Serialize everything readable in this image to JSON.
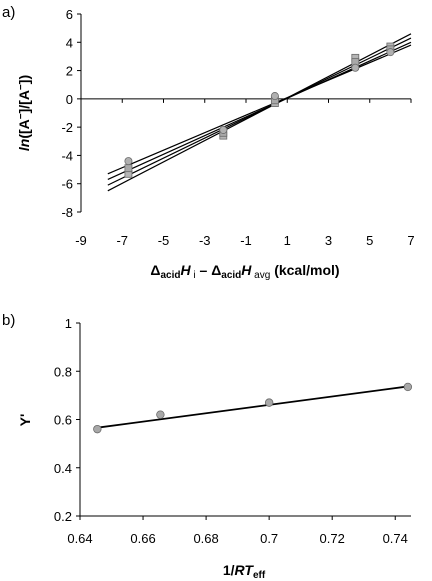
{
  "chart_data": [
    {
      "panel_label": "a)",
      "type": "scatter",
      "ylabel_parts": [
        "ln",
        "([A",
        "−",
        "]/[A",
        "−",
        "])"
      ],
      "xlabel_parts": [
        "Δ",
        "acid",
        "H",
        " i",
        " – Δ",
        "acid",
        "H",
        " avg",
        " (kcal/mol)"
      ],
      "xlim": [
        -9,
        7
      ],
      "ylim": [
        -8,
        6
      ],
      "xticks": [
        -9,
        -7,
        -5,
        -3,
        -1,
        1,
        3,
        5,
        7
      ],
      "yticks": [
        -8,
        -6,
        -4,
        -2,
        0,
        2,
        4,
        6
      ],
      "series": [
        {
          "marker": "square",
          "color": "#b5b5b5",
          "points": [
            [
              -6.7,
              -5.3
            ],
            [
              -2.1,
              -2.6
            ],
            [
              0.4,
              -0.3
            ],
            [
              4.3,
              2.9
            ],
            [
              6.0,
              3.7
            ]
          ]
        },
        {
          "marker": "square",
          "color": "#a9a9a9",
          "points": [
            [
              -6.7,
              -4.9
            ],
            [
              -2.1,
              -2.4
            ],
            [
              0.4,
              -0.1
            ],
            [
              4.3,
              2.6
            ],
            [
              6.0,
              3.5
            ]
          ]
        },
        {
          "marker": "circle",
          "color": "#b0b0b0",
          "points": [
            [
              -6.7,
              -4.4
            ],
            [
              -2.1,
              -2.2
            ],
            [
              0.4,
              0.2
            ],
            [
              4.3,
              2.2
            ],
            [
              6.0,
              3.3
            ]
          ]
        }
      ],
      "fit_lines": [
        {
          "x": [
            -7.7,
            7.0
          ],
          "y": [
            -6.5,
            4.6
          ]
        },
        {
          "x": [
            -7.7,
            7.0
          ],
          "y": [
            -6.1,
            4.3
          ]
        },
        {
          "x": [
            -7.7,
            7.0
          ],
          "y": [
            -5.7,
            4.0
          ]
        },
        {
          "x": [
            -7.7,
            7.0
          ],
          "y": [
            -5.3,
            3.8
          ]
        }
      ]
    },
    {
      "panel_label": "b)",
      "type": "scatter",
      "ylabel": "Y'",
      "xlabel_parts": [
        "1/",
        "RT",
        "eff"
      ],
      "xlim": [
        0.64,
        0.745
      ],
      "ylim": [
        0.2,
        1
      ],
      "xticks": [
        0.64,
        0.66,
        0.68,
        0.7,
        0.72,
        0.74
      ],
      "xtick_labels": [
        "0.64",
        "0.66",
        "0.68",
        "0.7",
        "0.72",
        "0.74"
      ],
      "yticks": [
        0.2,
        0.4,
        0.6,
        0.8,
        1
      ],
      "ytick_labels": [
        "0.2",
        "0.4",
        "0.6",
        "0.8",
        "1"
      ],
      "series": [
        {
          "marker": "circle",
          "color": "#a8a8a8",
          "points": [
            [
              0.6455,
              0.56
            ],
            [
              0.6655,
              0.62
            ],
            [
              0.7,
              0.67
            ],
            [
              0.744,
              0.735
            ]
          ]
        }
      ],
      "fit_lines": [
        {
          "x": [
            0.6455,
            0.744
          ],
          "y": [
            0.566,
            0.737
          ]
        }
      ]
    }
  ]
}
